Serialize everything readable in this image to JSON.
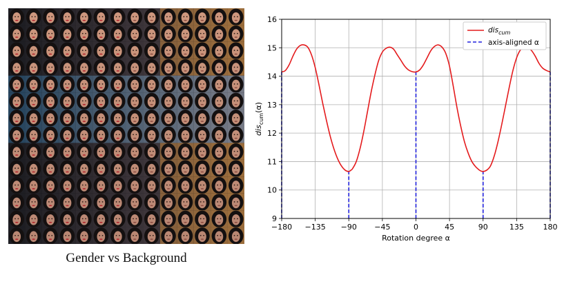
{
  "left_panel": {
    "caption": "Gender vs Background",
    "grid_rows": 14,
    "grid_cols": 14
  },
  "chart_data": {
    "type": "line",
    "xlabel": "Rotation degree α",
    "ylabel": "dis_cum(α)",
    "xlim": [
      -180,
      180
    ],
    "ylim": [
      9,
      16
    ],
    "xticks": [
      -180,
      -135,
      -90,
      -45,
      0,
      45,
      90,
      135,
      180
    ],
    "xtick_labels": [
      "−180",
      "−135",
      "−90",
      "−45",
      "0",
      "45",
      "90",
      "135",
      "180"
    ],
    "yticks": [
      9,
      10,
      11,
      12,
      13,
      14,
      15,
      16
    ],
    "grid": true,
    "legend_placement": "top-right",
    "series": [
      {
        "name": "dis_cum",
        "legend_label_main": "dis",
        "legend_label_sub": "cum",
        "style": "solid",
        "color": "#e41a1c",
        "x": [
          -180,
          -175,
          -170,
          -165,
          -160,
          -155,
          -150,
          -145,
          -140,
          -135,
          -130,
          -125,
          -120,
          -115,
          -110,
          -105,
          -100,
          -95,
          -90,
          -87,
          -85,
          -80,
          -75,
          -70,
          -65,
          -60,
          -55,
          -50,
          -45,
          -40,
          -35,
          -30,
          -25,
          -20,
          -15,
          -10,
          -5,
          0,
          5,
          10,
          15,
          20,
          25,
          30,
          35,
          40,
          45,
          50,
          55,
          60,
          65,
          70,
          75,
          80,
          85,
          87,
          90,
          95,
          100,
          105,
          110,
          115,
          120,
          125,
          130,
          135,
          140,
          145,
          150,
          155,
          160,
          165,
          170,
          175,
          180
        ],
        "y": [
          14.15,
          14.2,
          14.4,
          14.7,
          14.95,
          15.08,
          15.1,
          15.02,
          14.75,
          14.3,
          13.7,
          13.05,
          12.45,
          11.9,
          11.45,
          11.1,
          10.85,
          10.7,
          10.65,
          10.7,
          10.75,
          11.0,
          11.45,
          12.05,
          12.75,
          13.45,
          14.05,
          14.55,
          14.85,
          14.98,
          15.02,
          14.95,
          14.75,
          14.55,
          14.35,
          14.22,
          14.16,
          14.15,
          14.22,
          14.4,
          14.65,
          14.9,
          15.05,
          15.1,
          15.02,
          14.8,
          14.35,
          13.65,
          12.9,
          12.25,
          11.7,
          11.3,
          11.0,
          10.82,
          10.7,
          10.67,
          10.65,
          10.7,
          10.85,
          11.2,
          11.7,
          12.3,
          12.95,
          13.6,
          14.2,
          14.65,
          14.92,
          15.02,
          15.0,
          14.9,
          14.7,
          14.45,
          14.28,
          14.2,
          14.15
        ]
      },
      {
        "name": "axis-aligned α",
        "style": "dashed",
        "color": "#1f1fdd",
        "x": [
          -180,
          -90,
          0,
          90,
          180
        ],
        "y": [
          14.15,
          10.65,
          14.15,
          10.65,
          14.15
        ]
      }
    ]
  }
}
